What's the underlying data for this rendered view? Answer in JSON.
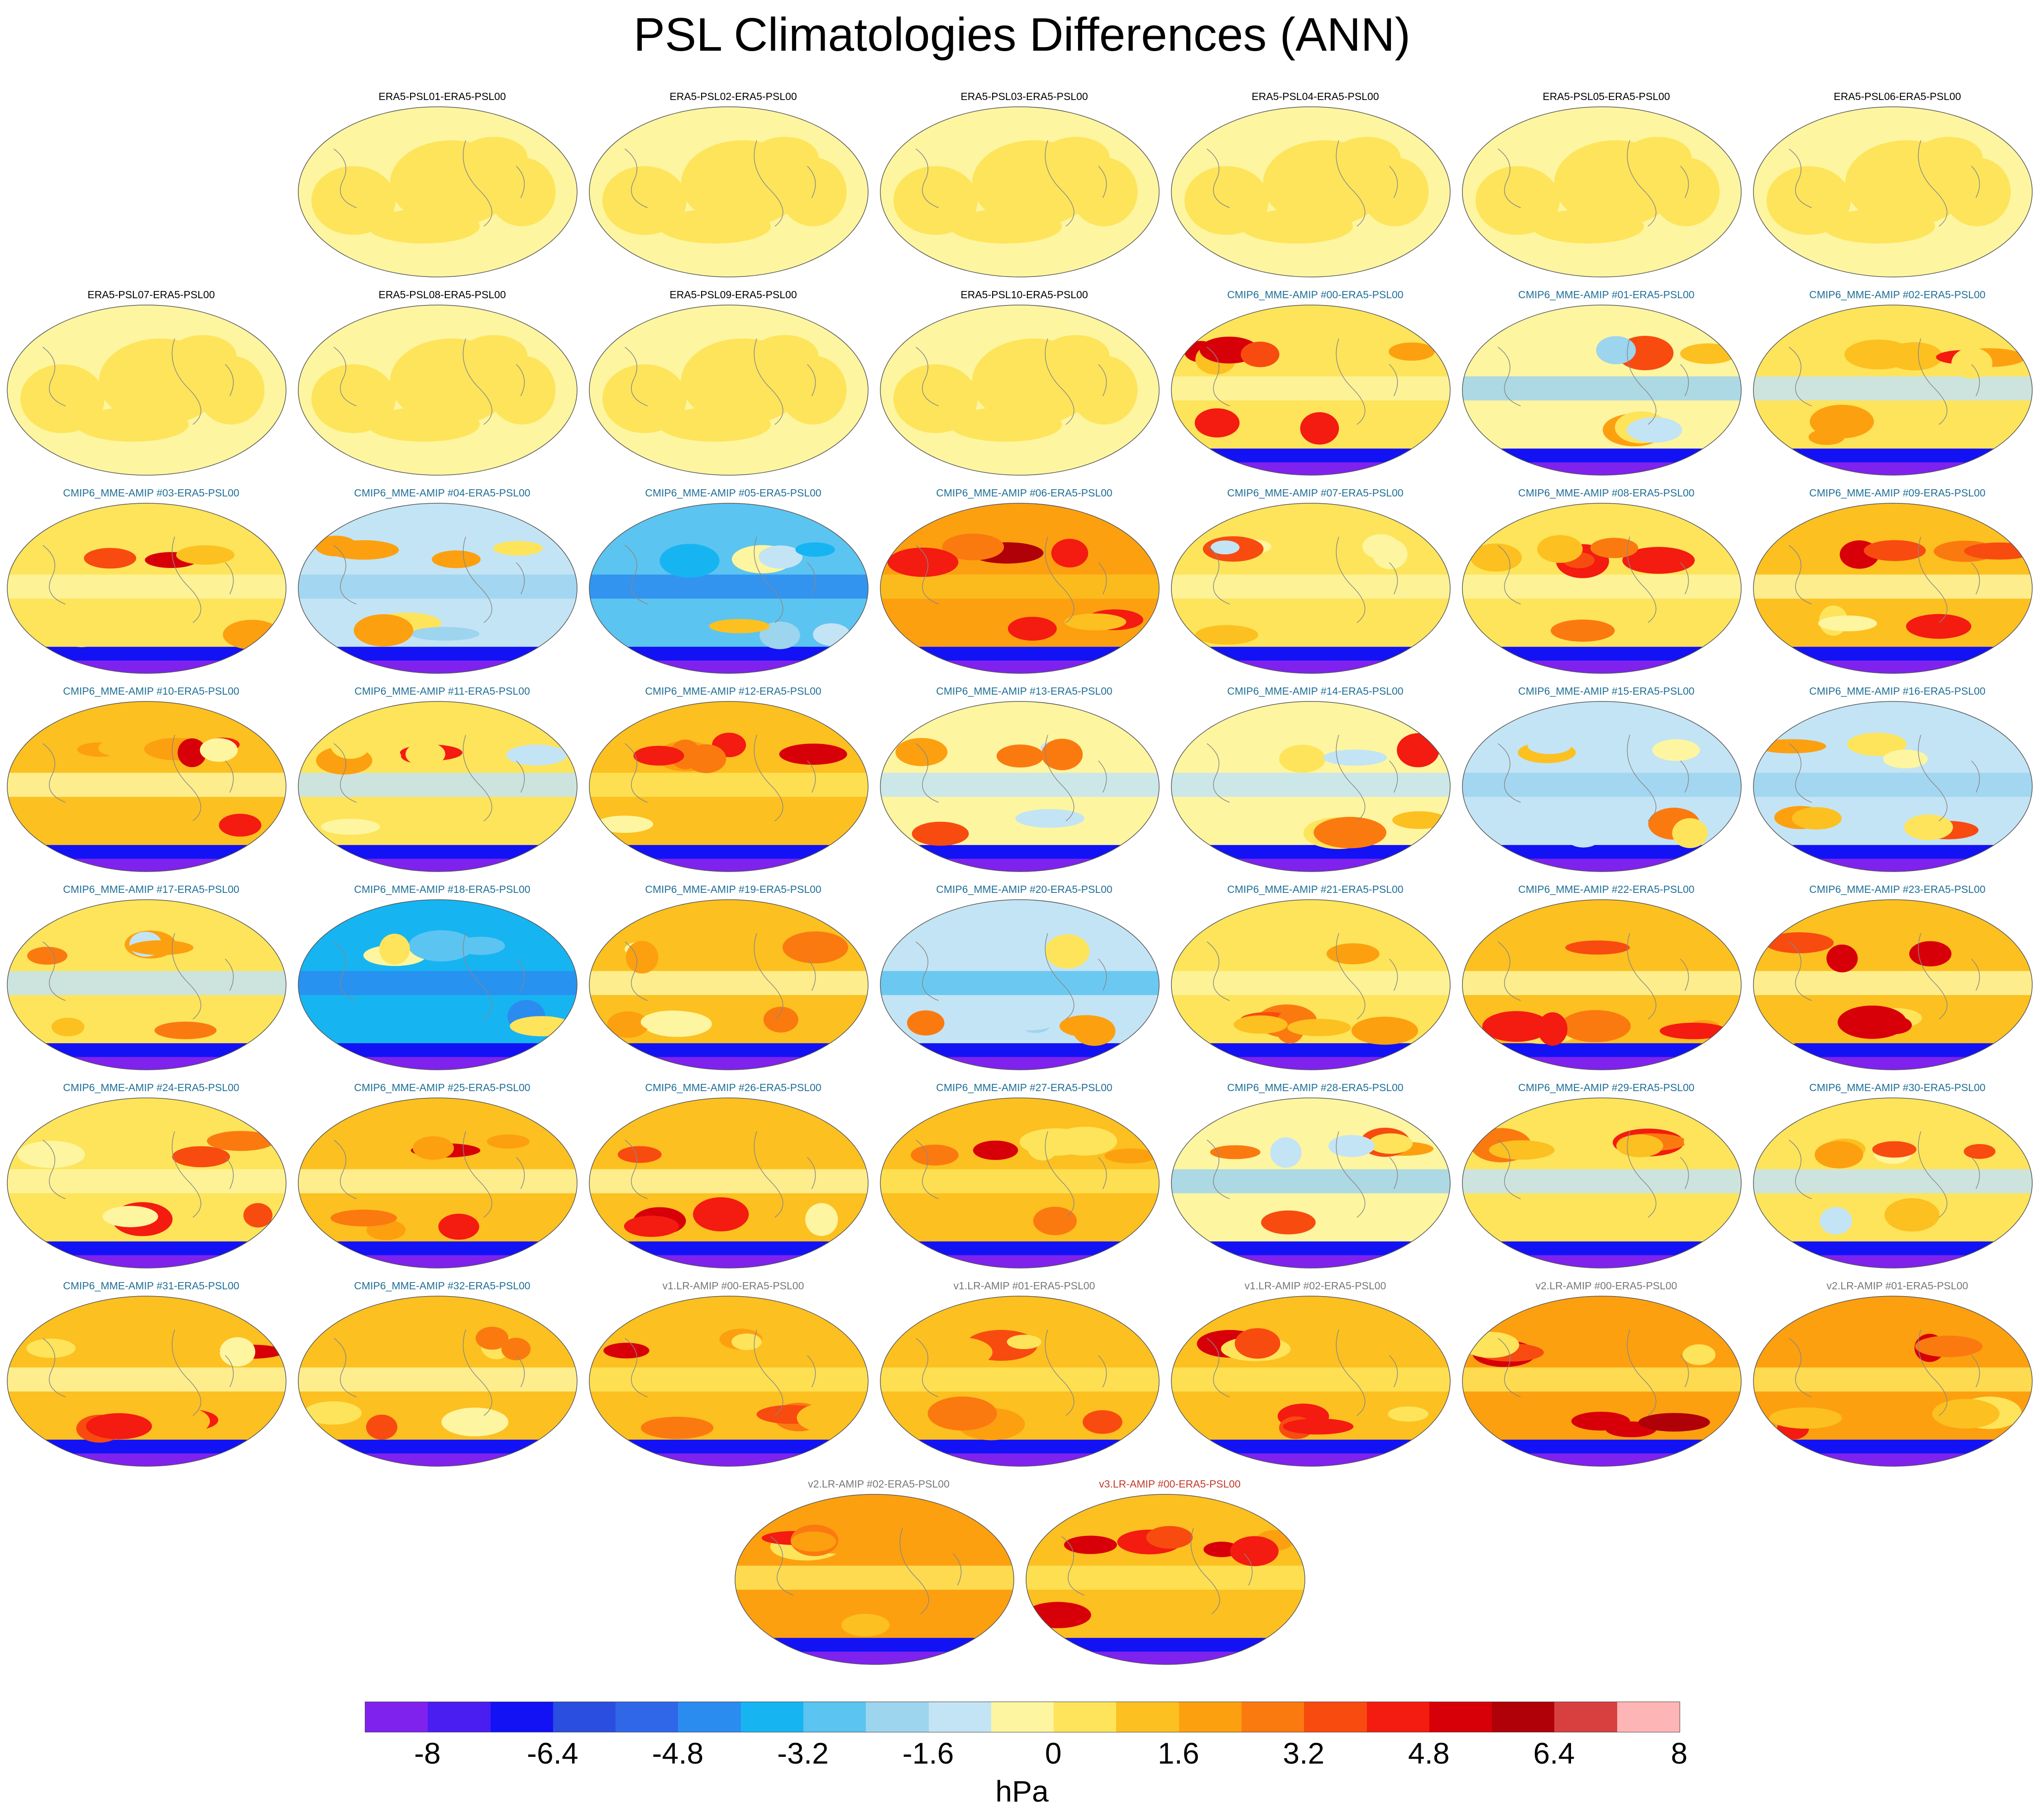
{
  "title": "PSL Climatologies Differences (ANN)",
  "panel_rows": [
    {
      "indent": 1,
      "panels": [
        {
          "label": "ERA5-PSL01-ERA5-PSL00",
          "group": "era5",
          "mean": 0
        },
        {
          "label": "ERA5-PSL02-ERA5-PSL00",
          "group": "era5",
          "mean": 0
        },
        {
          "label": "ERA5-PSL03-ERA5-PSL00",
          "group": "era5",
          "mean": 0
        },
        {
          "label": "ERA5-PSL04-ERA5-PSL00",
          "group": "era5",
          "mean": 0
        },
        {
          "label": "ERA5-PSL05-ERA5-PSL00",
          "group": "era5",
          "mean": 0
        },
        {
          "label": "ERA5-PSL06-ERA5-PSL00",
          "group": "era5",
          "mean": 0
        }
      ]
    },
    {
      "indent": 0,
      "panels": [
        {
          "label": "ERA5-PSL07-ERA5-PSL00",
          "group": "era5",
          "mean": 0
        },
        {
          "label": "ERA5-PSL08-ERA5-PSL00",
          "group": "era5",
          "mean": 0
        },
        {
          "label": "ERA5-PSL09-ERA5-PSL00",
          "group": "era5",
          "mean": 0
        },
        {
          "label": "ERA5-PSL10-ERA5-PSL00",
          "group": "era5",
          "mean": 0
        },
        {
          "label": "CMIP6_MME-AMIP  #00-ERA5-PSL00",
          "group": "cmip6",
          "mean": 0.5
        },
        {
          "label": "CMIP6_MME-AMIP  #01-ERA5-PSL00",
          "group": "cmip6",
          "mean": -0.5
        },
        {
          "label": "CMIP6_MME-AMIP  #02-ERA5-PSL00",
          "group": "cmip6",
          "mean": 0
        }
      ]
    },
    {
      "indent": 0,
      "panels": [
        {
          "label": "CMIP6_MME-AMIP  #03-ERA5-PSL00",
          "group": "cmip6",
          "mean": 0.5
        },
        {
          "label": "CMIP6_MME-AMIP  #04-ERA5-PSL00",
          "group": "cmip6",
          "mean": -1
        },
        {
          "label": "CMIP6_MME-AMIP  #05-ERA5-PSL00",
          "group": "cmip6",
          "mean": -3
        },
        {
          "label": "CMIP6_MME-AMIP  #06-ERA5-PSL00",
          "group": "cmip6",
          "mean": 2
        },
        {
          "label": "CMIP6_MME-AMIP  #07-ERA5-PSL00",
          "group": "cmip6",
          "mean": 0.5
        },
        {
          "label": "CMIP6_MME-AMIP  #08-ERA5-PSL00",
          "group": "cmip6",
          "mean": 0.5
        },
        {
          "label": "CMIP6_MME-AMIP  #09-ERA5-PSL00",
          "group": "cmip6",
          "mean": 0.8
        }
      ]
    },
    {
      "indent": 0,
      "panels": [
        {
          "label": "CMIP6_MME-AMIP  #10-ERA5-PSL00",
          "group": "cmip6",
          "mean": 1
        },
        {
          "label": "CMIP6_MME-AMIP  #11-ERA5-PSL00",
          "group": "cmip6",
          "mean": 0
        },
        {
          "label": "CMIP6_MME-AMIP  #12-ERA5-PSL00",
          "group": "cmip6",
          "mean": 1.2
        },
        {
          "label": "CMIP6_MME-AMIP  #13-ERA5-PSL00",
          "group": "cmip6",
          "mean": -0.3
        },
        {
          "label": "CMIP6_MME-AMIP  #14-ERA5-PSL00",
          "group": "cmip6",
          "mean": -0.2
        },
        {
          "label": "CMIP6_MME-AMIP  #15-ERA5-PSL00",
          "group": "cmip6",
          "mean": -1
        },
        {
          "label": "CMIP6_MME-AMIP  #16-ERA5-PSL00",
          "group": "cmip6",
          "mean": -1
        }
      ]
    },
    {
      "indent": 0,
      "panels": [
        {
          "label": "CMIP6_MME-AMIP  #17-ERA5-PSL00",
          "group": "cmip6",
          "mean": 0.3
        },
        {
          "label": "CMIP6_MME-AMIP  #18-ERA5-PSL00",
          "group": "cmip6",
          "mean": -3.5
        },
        {
          "label": "CMIP6_MME-AMIP  #19-ERA5-PSL00",
          "group": "cmip6",
          "mean": 0.8
        },
        {
          "label": "CMIP6_MME-AMIP  #20-ERA5-PSL00",
          "group": "cmip6",
          "mean": -1.5
        },
        {
          "label": "CMIP6_MME-AMIP  #21-ERA5-PSL00",
          "group": "cmip6",
          "mean": 0.6
        },
        {
          "label": "CMIP6_MME-AMIP  #22-ERA5-PSL00",
          "group": "cmip6",
          "mean": 1
        },
        {
          "label": "CMIP6_MME-AMIP  #23-ERA5-PSL00",
          "group": "cmip6",
          "mean": 0.8
        }
      ]
    },
    {
      "indent": 0,
      "panels": [
        {
          "label": "CMIP6_MME-AMIP  #24-ERA5-PSL00",
          "group": "cmip6",
          "mean": 0.6
        },
        {
          "label": "CMIP6_MME-AMIP  #25-ERA5-PSL00",
          "group": "cmip6",
          "mean": 0.8
        },
        {
          "label": "CMIP6_MME-AMIP  #26-ERA5-PSL00",
          "group": "cmip6",
          "mean": 1
        },
        {
          "label": "CMIP6_MME-AMIP  #27-ERA5-PSL00",
          "group": "cmip6",
          "mean": 1.3
        },
        {
          "label": "CMIP6_MME-AMIP  #28-ERA5-PSL00",
          "group": "cmip6",
          "mean": -0.5
        },
        {
          "label": "CMIP6_MME-AMIP  #29-ERA5-PSL00",
          "group": "cmip6",
          "mean": 0.2
        },
        {
          "label": "CMIP6_MME-AMIP  #30-ERA5-PSL00",
          "group": "cmip6",
          "mean": 0.2
        }
      ]
    },
    {
      "indent": 0,
      "panels": [
        {
          "label": "CMIP6_MME-AMIP  #31-ERA5-PSL00",
          "group": "cmip6",
          "mean": 0.8
        },
        {
          "label": "CMIP6_MME-AMIP  #32-ERA5-PSL00",
          "group": "cmip6",
          "mean": 0.8
        },
        {
          "label": "v1.LR-AMIP  #00-ERA5-PSL00",
          "group": "v1",
          "mean": 1.5
        },
        {
          "label": "v1.LR-AMIP  #01-ERA5-PSL00",
          "group": "v1",
          "mean": 1.5
        },
        {
          "label": "v1.LR-AMIP  #02-ERA5-PSL00",
          "group": "v1",
          "mean": 1.5
        },
        {
          "label": "v2.LR-AMIP  #00-ERA5-PSL00",
          "group": "v2",
          "mean": 1.7
        },
        {
          "label": "v2.LR-AMIP  #01-ERA5-PSL00",
          "group": "v2",
          "mean": 1.7
        }
      ]
    },
    {
      "indent": 2.5,
      "panels": [
        {
          "label": "v2.LR-AMIP  #02-ERA5-PSL00",
          "group": "v2",
          "mean": 1.6
        },
        {
          "label": "v3.LR-AMIP  #00-ERA5-PSL00",
          "group": "v3",
          "mean": 1.5
        }
      ]
    }
  ],
  "label_colors": {
    "era5": "#000000",
    "cmip6": "#1f6f96",
    "v1": "#777777",
    "v2": "#777777",
    "v3": "#c0392b"
  },
  "colorbar": {
    "colors": [
      "#7f22ee",
      "#4a1df0",
      "#1212f5",
      "#2a4ee0",
      "#3066e8",
      "#2b8cf0",
      "#17b4f2",
      "#5cc4f0",
      "#9dd4ee",
      "#c3e4f5",
      "#fdf5a0",
      "#fde45a",
      "#fcc020",
      "#fca010",
      "#fb7a10",
      "#f84b10",
      "#f41b10",
      "#d80008",
      "#b00008",
      "#d84040",
      "#feb5b5"
    ],
    "levels": [
      -9,
      -8,
      -7.2,
      -6.4,
      -5.6,
      -4.8,
      -4,
      -3.2,
      -2.4,
      -1.6,
      -0.8,
      0,
      0.8,
      1.6,
      2.4,
      3.2,
      4,
      4.8,
      5.6,
      6.4,
      7.2,
      8
    ],
    "tick_labels": [
      "-8",
      "-6.4",
      "-4.8",
      "-3.2",
      "-1.6",
      "0",
      "1.6",
      "3.2",
      "4.8",
      "6.4",
      "8"
    ],
    "unit": "hPa"
  }
}
